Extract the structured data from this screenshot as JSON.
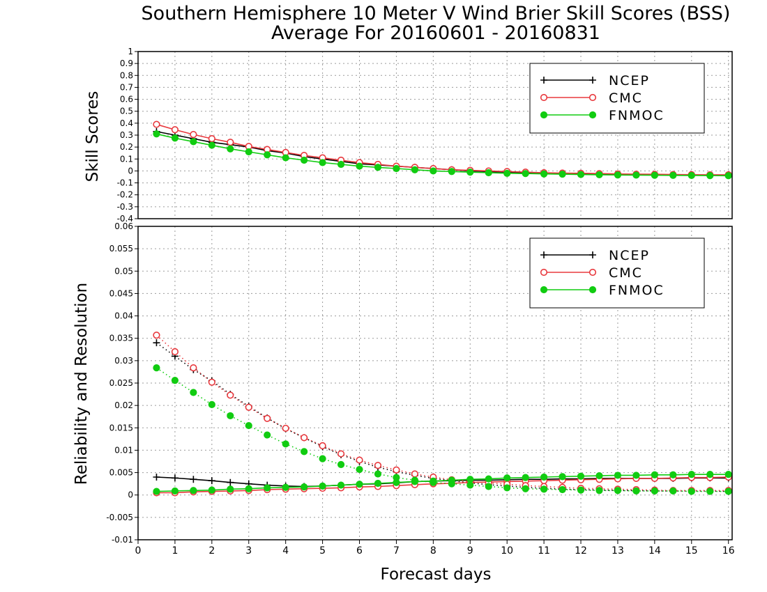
{
  "chart_data": {
    "title": "Southern Hemisphere 10 Meter V Wind Brier Skill Scores (BSS)",
    "subtitle": "Average For 20160601 - 20160831",
    "xlabel": "Forecast days",
    "xlim": [
      0,
      16.1
    ],
    "x_ticks": [
      "0",
      "1",
      "2",
      "3",
      "4",
      "5",
      "6",
      "7",
      "8",
      "9",
      "10",
      "11",
      "12",
      "13",
      "14",
      "15",
      "16"
    ],
    "x": [
      0.5,
      1,
      1.5,
      2,
      2.5,
      3,
      3.5,
      4,
      4.5,
      5,
      5.5,
      6,
      6.5,
      7,
      7.5,
      8,
      8.5,
      9,
      9.5,
      10,
      10.5,
      11,
      11.5,
      12,
      12.5,
      13,
      13.5,
      14,
      14.5,
      15,
      15.5,
      16
    ],
    "legend_position": "top-right",
    "colors": {
      "NCEP": "#000000",
      "CMC": "#e8383d",
      "FNMOC": "#11cc11"
    },
    "panels": [
      {
        "type": "line",
        "ylabel": "Skill Scores",
        "ylim": [
          -0.4,
          1.0
        ],
        "y_ticks": [
          "1",
          "0.9",
          "0.8",
          "0.7",
          "0.6",
          "0.5",
          "0.4",
          "0.3",
          "0.2",
          "0.1",
          "0",
          "-0.1",
          "-0.2",
          "-0.3",
          "-0.4"
        ],
        "grid": true,
        "series": [
          {
            "name": "NCEP",
            "marker": "plus",
            "style": "solid",
            "values": [
              0.33,
              0.3,
              0.27,
              0.24,
              0.22,
              0.2,
              0.17,
              0.15,
              0.12,
              0.1,
              0.08,
              0.06,
              0.05,
              0.04,
              0.03,
              0.02,
              0.01,
              0.0,
              -0.005,
              -0.01,
              -0.015,
              -0.02,
              -0.022,
              -0.025,
              -0.028,
              -0.03,
              -0.032,
              -0.034,
              -0.035,
              -0.036,
              -0.037,
              -0.038
            ]
          },
          {
            "name": "CMC",
            "marker": "open-circle",
            "style": "solid",
            "values": [
              0.39,
              0.345,
              0.305,
              0.27,
              0.24,
              0.205,
              0.18,
              0.155,
              0.13,
              0.11,
              0.09,
              0.07,
              0.055,
              0.04,
              0.03,
              0.02,
              0.01,
              0.005,
              0.0,
              -0.005,
              -0.01,
              -0.015,
              -0.018,
              -0.02,
              -0.022,
              -0.025,
              -0.027,
              -0.028,
              -0.03,
              -0.031,
              -0.032,
              -0.032
            ]
          },
          {
            "name": "FNMOC",
            "marker": "filled-circle",
            "style": "solid",
            "values": [
              0.31,
              0.275,
              0.245,
              0.215,
              0.185,
              0.16,
              0.135,
              0.11,
              0.09,
              0.07,
              0.055,
              0.04,
              0.03,
              0.02,
              0.01,
              0.0,
              -0.005,
              -0.01,
              -0.015,
              -0.02,
              -0.022,
              -0.025,
              -0.027,
              -0.03,
              -0.032,
              -0.034,
              -0.035,
              -0.036,
              -0.037,
              -0.038,
              -0.039,
              -0.04
            ]
          }
        ]
      },
      {
        "type": "line",
        "ylabel": "Reliability and Resolution",
        "ylim": [
          -0.01,
          0.06
        ],
        "y_ticks": [
          "0.06",
          "0.055",
          "0.05",
          "0.045",
          "0.04",
          "0.035",
          "0.03",
          "0.025",
          "0.02",
          "0.015",
          "0.01",
          "0.005",
          "0",
          "-0.005",
          "-0.01"
        ],
        "grid": true,
        "series": [
          {
            "name": "NCEP",
            "component": "resolution",
            "marker": "plus",
            "style": "solid",
            "values": [
              0.004,
              0.0038,
              0.0035,
              0.0032,
              0.0028,
              0.0025,
              0.0022,
              0.002,
              0.0019,
              0.002,
              0.0022,
              0.0024,
              0.0025,
              0.0027,
              0.003,
              0.0031,
              0.0032,
              0.0033,
              0.0033,
              0.0034,
              0.0035,
              0.0035,
              0.0036,
              0.0036,
              0.0037,
              0.0037,
              0.0037,
              0.0037,
              0.0037,
              0.0038,
              0.0038,
              0.0038
            ]
          },
          {
            "name": "NCEP",
            "component": "reliability",
            "marker": "plus",
            "style": "dotted",
            "values": [
              0.034,
              0.031,
              0.028,
              0.0255,
              0.0225,
              0.0198,
              0.0172,
              0.0148,
              0.0128,
              0.0108,
              0.009,
              0.0075,
              0.0062,
              0.0052,
              0.0044,
              0.0037,
              0.0032,
              0.0027,
              0.0023,
              0.002,
              0.0017,
              0.0015,
              0.0013,
              0.0012,
              0.0011,
              0.001,
              0.001,
              0.0009,
              0.0009,
              0.0009,
              0.0009,
              0.0008
            ]
          },
          {
            "name": "CMC",
            "component": "resolution",
            "marker": "open-circle",
            "style": "solid",
            "values": [
              0.0005,
              0.0005,
              0.0007,
              0.0008,
              0.0009,
              0.001,
              0.0012,
              0.0013,
              0.0014,
              0.0015,
              0.0016,
              0.0018,
              0.0019,
              0.0021,
              0.0023,
              0.0025,
              0.0026,
              0.0028,
              0.0029,
              0.003,
              0.0031,
              0.0032,
              0.0033,
              0.0034,
              0.0035,
              0.0036,
              0.0037,
              0.0037,
              0.0038,
              0.0039,
              0.0039,
              0.004
            ]
          },
          {
            "name": "CMC",
            "component": "reliability",
            "marker": "open-circle",
            "style": "dotted",
            "values": [
              0.0357,
              0.032,
              0.0284,
              0.0252,
              0.0223,
              0.0196,
              0.0171,
              0.0149,
              0.0128,
              0.011,
              0.0092,
              0.0078,
              0.0066,
              0.0056,
              0.0047,
              0.004,
              0.0034,
              0.003,
              0.0027,
              0.0024,
              0.0021,
              0.0019,
              0.0017,
              0.0015,
              0.0014,
              0.0013,
              0.0012,
              0.0011,
              0.001,
              0.001,
              0.001,
              0.001
            ]
          },
          {
            "name": "FNMOC",
            "component": "resolution",
            "marker": "filled-circle",
            "style": "solid",
            "values": [
              0.0008,
              0.0009,
              0.001,
              0.0011,
              0.0013,
              0.0014,
              0.0016,
              0.0017,
              0.0018,
              0.002,
              0.0022,
              0.0024,
              0.0026,
              0.0028,
              0.003,
              0.0031,
              0.0033,
              0.0035,
              0.0036,
              0.0038,
              0.0039,
              0.004,
              0.0041,
              0.0042,
              0.0043,
              0.0044,
              0.0044,
              0.0045,
              0.0045,
              0.0046,
              0.0046,
              0.0046
            ]
          },
          {
            "name": "FNMOC",
            "component": "reliability",
            "marker": "filled-circle",
            "style": "dotted",
            "values": [
              0.0284,
              0.0256,
              0.0229,
              0.0202,
              0.0177,
              0.0155,
              0.0134,
              0.0114,
              0.0097,
              0.0081,
              0.0068,
              0.0057,
              0.0047,
              0.0039,
              0.0033,
              0.0028,
              0.0025,
              0.0022,
              0.0019,
              0.0016,
              0.0014,
              0.0013,
              0.0012,
              0.0011,
              0.001,
              0.001,
              0.0009,
              0.0009,
              0.0009,
              0.0008,
              0.0008,
              0.0008
            ]
          }
        ]
      }
    ]
  }
}
